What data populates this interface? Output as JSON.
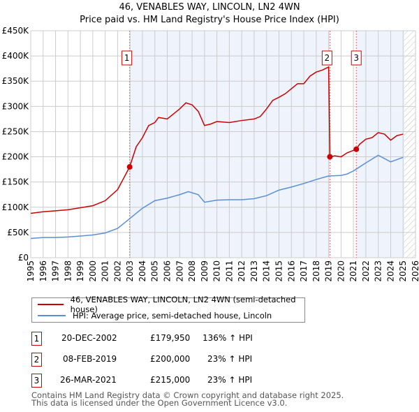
{
  "chart_data": {
    "type": "line",
    "title": "46, VENABLES WAY, LINCOLN, LN2 4WN",
    "subtitle": "Price paid vs. HM Land Registry's House Price Index (HPI)",
    "xlim": [
      1995,
      2026
    ],
    "ylim": [
      0,
      450000
    ],
    "x_ticks": [
      "1995",
      "1996",
      "1997",
      "1998",
      "1999",
      "2000",
      "2001",
      "2002",
      "2003",
      "2004",
      "2005",
      "2006",
      "2007",
      "2008",
      "2009",
      "2010",
      "2011",
      "2012",
      "2013",
      "2014",
      "2015",
      "2016",
      "2017",
      "2018",
      "2019",
      "2020",
      "2021",
      "2022",
      "2023",
      "2024",
      "2025",
      "2026"
    ],
    "y_ticks": [
      "£0",
      "£50K",
      "£100K",
      "£150K",
      "£200K",
      "£250K",
      "£300K",
      "£350K",
      "£400K",
      "£450K"
    ],
    "grid": true,
    "series": [
      {
        "name": "46, VENABLES WAY, LINCOLN, LN2 4WN (semi-detached house)",
        "color": "#cc0000",
        "x": [
          1995,
          1996,
          1997,
          1998,
          1999,
          2000,
          2001,
          2002,
          2002.97,
          2003.5,
          2004,
          2004.5,
          2005,
          2005.3,
          2006,
          2006.5,
          2007,
          2007.5,
          2008,
          2008.5,
          2009,
          2009.5,
          2010,
          2011,
          2012,
          2013,
          2013.5,
          2014,
          2014.5,
          2015,
          2015.5,
          2016,
          2016.5,
          2017,
          2017.5,
          2018,
          2018.5,
          2019.0,
          2019.1,
          2019.5,
          2020,
          2020.5,
          2021.23,
          2021.5,
          2022,
          2022.5,
          2023,
          2023.5,
          2024,
          2024.5,
          2025
        ],
        "y": [
          88000,
          91000,
          93000,
          95000,
          99000,
          103000,
          113000,
          135000,
          179950,
          220000,
          238000,
          262000,
          268000,
          278000,
          275000,
          285000,
          295000,
          307000,
          303000,
          290000,
          262000,
          265000,
          270000,
          268000,
          272000,
          275000,
          280000,
          295000,
          312000,
          318000,
          325000,
          335000,
          345000,
          345000,
          360000,
          368000,
          372000,
          378000,
          200000,
          202000,
          200000,
          208000,
          215000,
          225000,
          235000,
          238000,
          248000,
          245000,
          233000,
          242000,
          245000
        ]
      },
      {
        "name": "HPI: Average price, semi-detached house, Lincoln",
        "color": "#5b8fd4",
        "x": [
          1995,
          1996,
          1997,
          1998,
          1999,
          2000,
          2001,
          2002,
          2003,
          2004,
          2005,
          2006,
          2007,
          2007.7,
          2008.5,
          2009,
          2010,
          2011,
          2012,
          2013,
          2014,
          2015,
          2016,
          2017,
          2018,
          2019,
          2020,
          2020.5,
          2021,
          2022,
          2023,
          2024,
          2025
        ],
        "y": [
          38000,
          40000,
          40000,
          41000,
          43000,
          45000,
          49000,
          58000,
          78000,
          98000,
          113000,
          118000,
          125000,
          131000,
          125000,
          110000,
          114000,
          115000,
          115000,
          117000,
          123000,
          134000,
          140000,
          147000,
          155000,
          162000,
          163000,
          166000,
          172000,
          188000,
          203000,
          190000,
          199000
        ]
      }
    ],
    "sales": [
      {
        "label": "1",
        "x": 2002.97,
        "y": 179950,
        "date": "20-DEC-2002",
        "price": "£179,950",
        "hpi": "136% ↑ HPI"
      },
      {
        "label": "2",
        "x": 2019.1,
        "y": 200000,
        "date": "08-FEB-2019",
        "price": "£200,000",
        "hpi": "23% ↑ HPI"
      },
      {
        "label": "3",
        "x": 2021.23,
        "y": 215000,
        "date": "26-MAR-2021",
        "price": "£215,000",
        "hpi": "23% ↑ HPI"
      }
    ],
    "forecast_start": 2025.1
  },
  "footer": {
    "line1": "Contains HM Land Registry data © Crown copyright and database right 2025.",
    "line2": "This data is licensed under the Open Government Licence v3.0."
  }
}
